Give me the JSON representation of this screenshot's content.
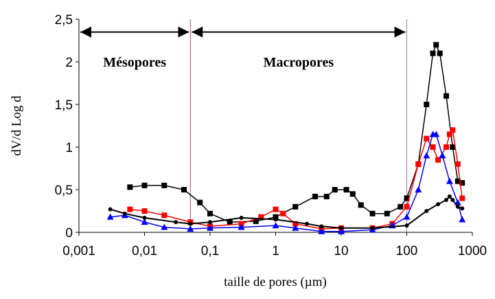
{
  "chart_data": {
    "type": "scatter",
    "x_label": "taille de pores (µm)",
    "y_label": "dV/d Log d",
    "log_x": true,
    "xlim": [
      0.001,
      1000
    ],
    "ylim": [
      0,
      2.5
    ],
    "xticks": [
      {
        "value": 0.001,
        "label": "0,001"
      },
      {
        "value": 0.01,
        "label": "0,01"
      },
      {
        "value": 0.1,
        "label": "0,1"
      },
      1,
      10,
      100,
      1000
    ],
    "yticks": [
      0,
      {
        "value": 0.5,
        "label": "0,5"
      },
      1,
      {
        "value": 1.5,
        "label": "1,5"
      },
      2,
      {
        "value": 2.5,
        "label": "2,5"
      }
    ],
    "regions": [
      {
        "label": "Mésopores",
        "from": 0.001,
        "to": 0.05
      },
      {
        "label": "Macropores",
        "from": 0.05,
        "to": 100
      }
    ],
    "series": [
      {
        "color": "#000000",
        "marker": "square",
        "x": [
          0.006,
          0.01,
          0.02,
          0.04,
          0.07,
          0.1,
          0.2,
          0.5,
          1,
          2,
          4,
          6,
          8,
          12,
          15,
          20,
          30,
          50,
          80,
          100,
          150,
          200,
          250,
          280,
          320,
          400,
          500,
          600,
          700
        ],
        "values": [
          0.53,
          0.55,
          0.55,
          0.5,
          0.35,
          0.22,
          0.12,
          0.13,
          0.18,
          0.3,
          0.42,
          0.42,
          0.5,
          0.5,
          0.45,
          0.32,
          0.22,
          0.22,
          0.3,
          0.4,
          0.8,
          1.5,
          2.1,
          2.2,
          2.1,
          1.6,
          1.0,
          0.6,
          0.58
        ]
      },
      {
        "color": "#ff0000",
        "marker": "square",
        "x": [
          0.006,
          0.01,
          0.02,
          0.05,
          0.1,
          0.3,
          0.6,
          1,
          1.3,
          2,
          5,
          10,
          30,
          60,
          100,
          150,
          200,
          250,
          300,
          400,
          450,
          500,
          600,
          700
        ],
        "values": [
          0.27,
          0.25,
          0.2,
          0.12,
          0.07,
          0.1,
          0.18,
          0.27,
          0.22,
          0.1,
          0.04,
          0.05,
          0.05,
          0.1,
          0.3,
          0.8,
          1.1,
          1.0,
          0.85,
          1.0,
          1.15,
          1.2,
          0.8,
          0.4
        ]
      },
      {
        "color": "#0000ff",
        "marker": "triangle",
        "x": [
          0.003,
          0.005,
          0.01,
          0.02,
          0.05,
          0.1,
          0.3,
          1,
          2,
          5,
          10,
          30,
          60,
          100,
          150,
          200,
          250,
          280,
          350,
          450,
          600,
          700
        ],
        "values": [
          0.18,
          0.2,
          0.12,
          0.06,
          0.04,
          0.05,
          0.06,
          0.08,
          0.05,
          0.01,
          0.01,
          0.03,
          0.08,
          0.18,
          0.5,
          0.9,
          1.15,
          1.15,
          0.9,
          0.6,
          0.35,
          0.15
        ]
      },
      {
        "color": "#000000",
        "marker": "circle",
        "x": [
          0.003,
          0.005,
          0.01,
          0.03,
          0.05,
          0.1,
          0.3,
          1,
          3,
          5,
          10,
          30,
          100,
          200,
          300,
          400,
          450,
          500,
          600,
          700
        ],
        "values": [
          0.27,
          0.22,
          0.17,
          0.12,
          0.1,
          0.12,
          0.17,
          0.15,
          0.1,
          0.07,
          0.05,
          0.05,
          0.08,
          0.25,
          0.33,
          0.38,
          0.42,
          0.38,
          0.3,
          0.28
        ]
      }
    ]
  }
}
